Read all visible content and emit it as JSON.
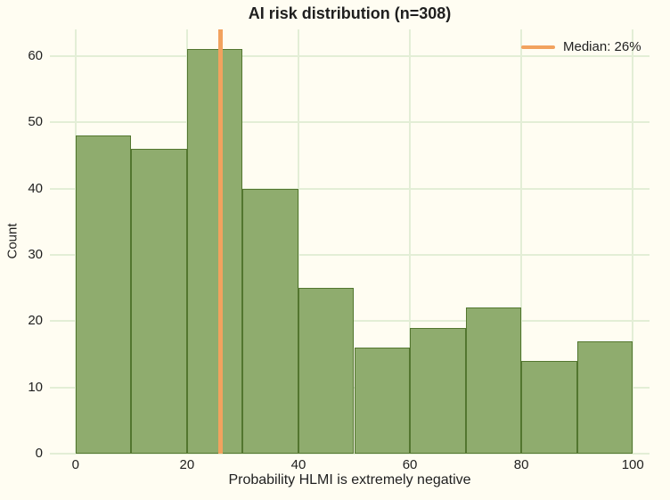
{
  "chart_data": {
    "type": "bar",
    "subtype": "histogram",
    "title": "AI risk distribution (n=308)",
    "xlabel": "Probability HLMI is extremely negative",
    "ylabel": "Count",
    "n_total": 308,
    "bin_edges": [
      0,
      10,
      20,
      30,
      40,
      50,
      60,
      70,
      80,
      90,
      100
    ],
    "counts": [
      48,
      46,
      61,
      40,
      25,
      16,
      19,
      22,
      14,
      17
    ],
    "median_line": {
      "x": 26,
      "label": "Median: 26%"
    },
    "x_ticks": [
      0,
      20,
      40,
      60,
      80,
      100
    ],
    "y_ticks": [
      0,
      10,
      20,
      30,
      40,
      50,
      60
    ],
    "xlim": [
      -4.6,
      103
    ],
    "ylim": [
      0,
      64
    ],
    "grid": true,
    "legend_position": "upper right",
    "colors": {
      "bar_fill": "#8fac6e",
      "bar_edge": "#53762f",
      "median": "#f2a25e",
      "background": "#fffdf2",
      "grid": "#e3eed6",
      "text": "#1f1f1f"
    }
  }
}
